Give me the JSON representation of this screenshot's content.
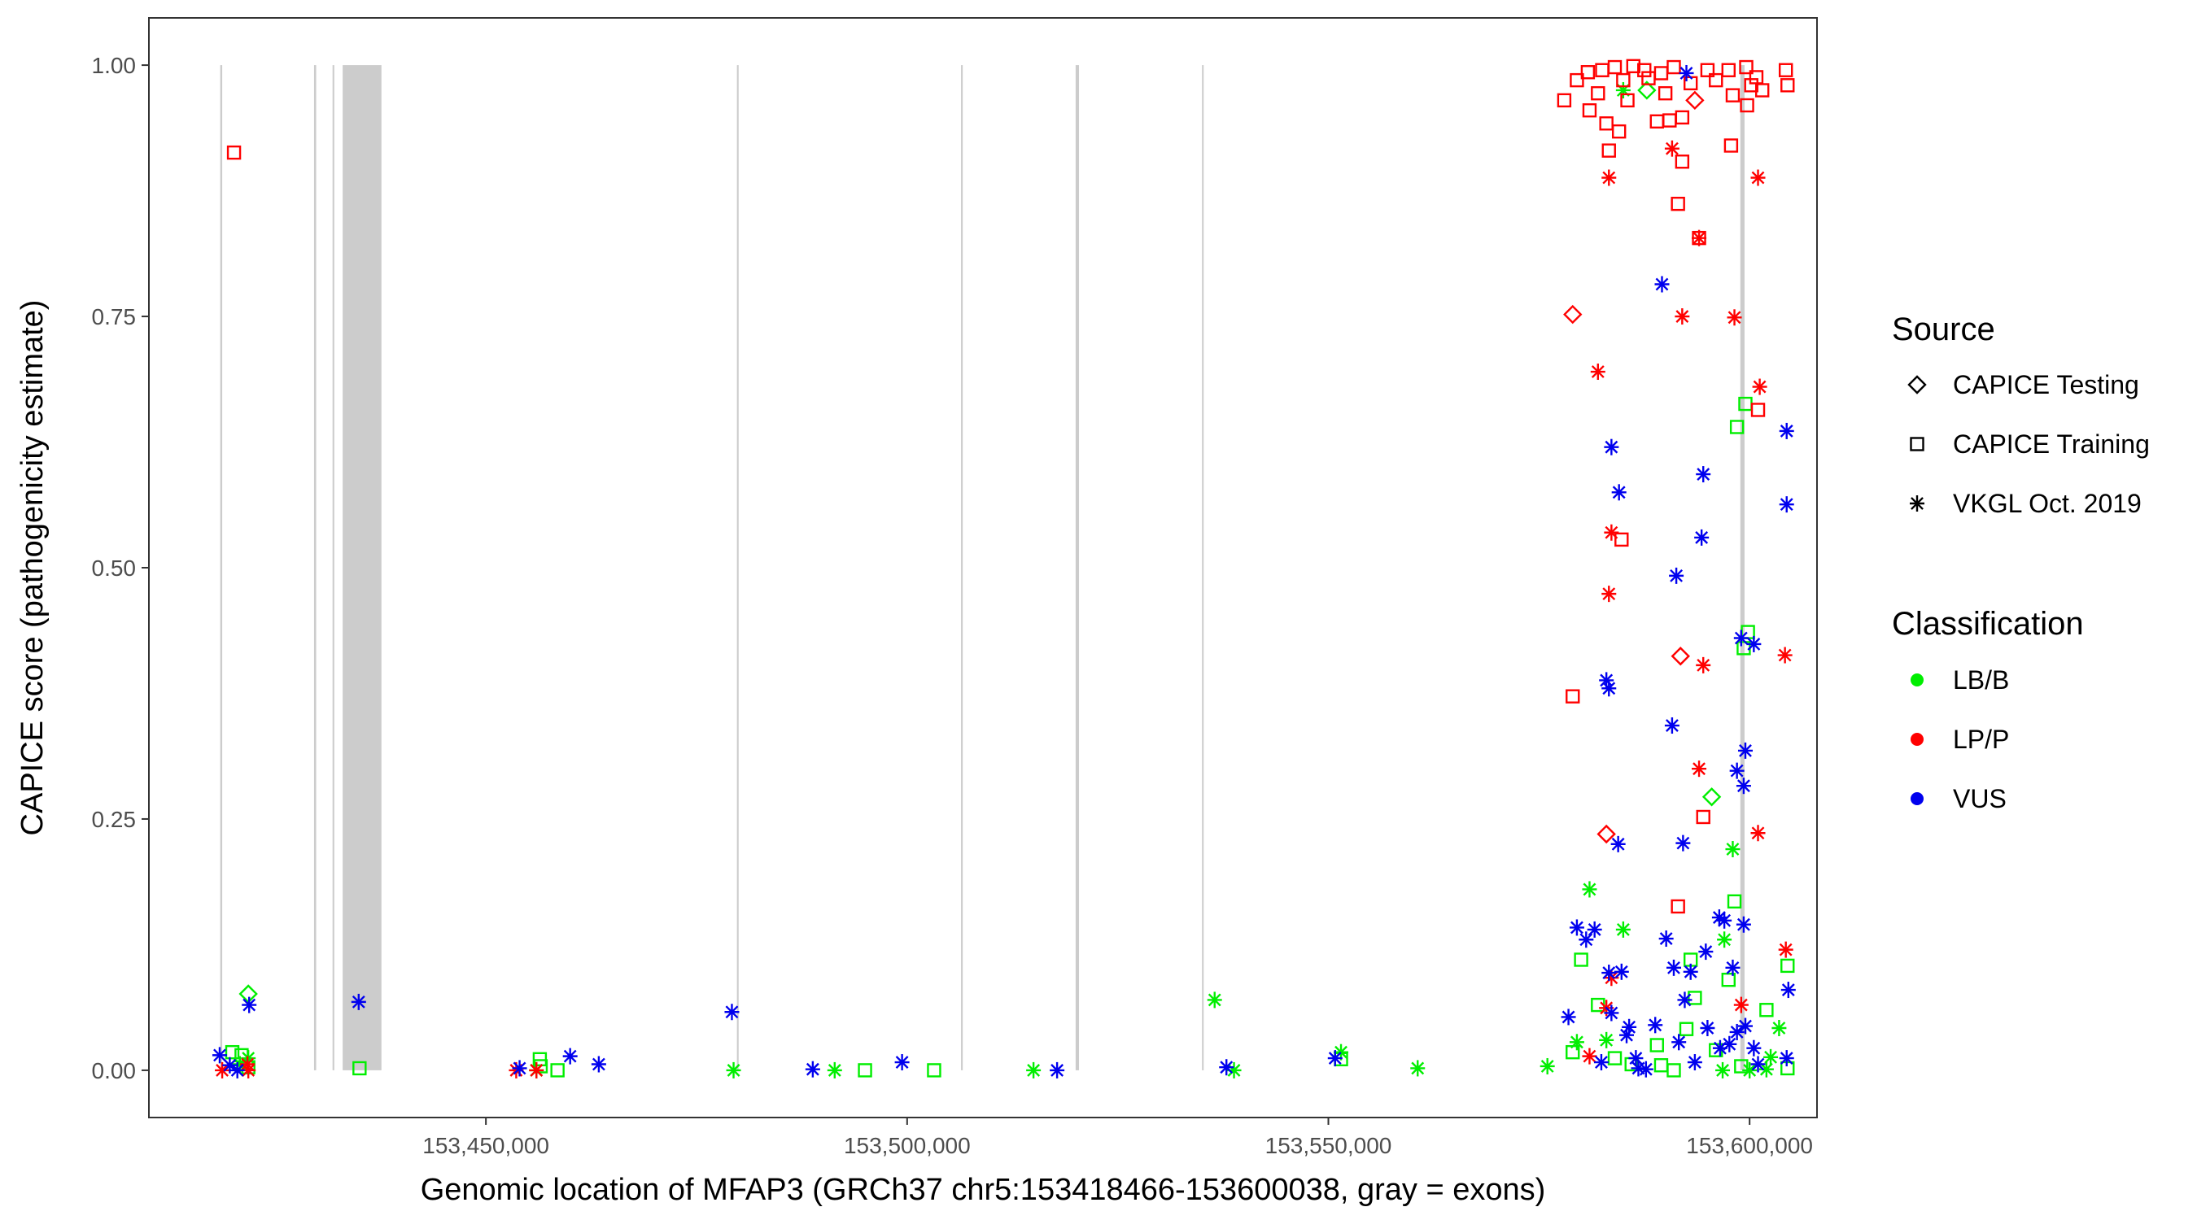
{
  "chart_data": {
    "type": "scatter",
    "title": "",
    "xlabel": "Genomic location of MFAP3 (GRCh37 chr5:153418466-153600038, gray = exons)",
    "ylabel": "CAPICE score (pathogenicity estimate)",
    "xlim": [
      153410000,
      153608000
    ],
    "ylim": [
      -0.047,
      1.047
    ],
    "grid": false,
    "x_ticks": [
      153450000,
      153500000,
      153550000,
      153600000
    ],
    "x_tick_labels": [
      "153,450,000",
      "153,500,000",
      "153,550,000",
      "153,600,000"
    ],
    "y_ticks": [
      0.0,
      0.25,
      0.5,
      0.75,
      1.0
    ],
    "y_tick_labels": [
      "0.00",
      "0.25",
      "0.50",
      "0.75",
      "1.00"
    ],
    "exons": [
      [
        153418466,
        153418700
      ],
      [
        153429600,
        153429850
      ],
      [
        153431800,
        153432000
      ],
      [
        153433000,
        153437600
      ],
      [
        153479800,
        153480000
      ],
      [
        153506400,
        153506600
      ],
      [
        153520000,
        153520400
      ],
      [
        153535000,
        153535200
      ],
      [
        153598900,
        153599400
      ]
    ],
    "legend": {
      "position": "right",
      "source_title": "Source",
      "source_items": [
        {
          "label": "CAPICE Testing",
          "shape": "diamond"
        },
        {
          "label": "CAPICE Training",
          "shape": "square"
        },
        {
          "label": "VKGL Oct. 2019",
          "shape": "asterisk"
        }
      ],
      "class_title": "Classification",
      "class_items": [
        {
          "label": "LB/B",
          "color": "#00ee00"
        },
        {
          "label": "LP/P",
          "color": "#ff0000"
        },
        {
          "label": "VUS",
          "color": "#0000ee"
        }
      ]
    },
    "series": [
      {
        "name": "LB/B",
        "color": "#00ee00",
        "points": [
          [
            153421800,
            0.076,
            "diamond"
          ],
          [
            153419900,
            0.018,
            "square"
          ],
          [
            153421000,
            0.015,
            "square"
          ],
          [
            153421800,
            0.012,
            "asterisk"
          ],
          [
            153420800,
            0.006,
            "asterisk"
          ],
          [
            153421800,
            0.003,
            "square"
          ],
          [
            153435000,
            0.002,
            "square"
          ],
          [
            153456400,
            0.011,
            "square"
          ],
          [
            153456500,
            0.004,
            "square"
          ],
          [
            153458500,
            0.0,
            "square"
          ],
          [
            153456000,
            0.0,
            "asterisk"
          ],
          [
            153479400,
            0.0,
            "asterisk"
          ],
          [
            153491400,
            0.0,
            "asterisk"
          ],
          [
            153495000,
            0.0,
            "square"
          ],
          [
            153503200,
            0.0,
            "square"
          ],
          [
            153515000,
            0.0,
            "asterisk"
          ],
          [
            153536500,
            0.07,
            "asterisk"
          ],
          [
            153538800,
            0.0,
            "asterisk"
          ],
          [
            153551500,
            0.018,
            "asterisk"
          ],
          [
            153551500,
            0.011,
            "square"
          ],
          [
            153560600,
            0.002,
            "asterisk"
          ],
          [
            153576000,
            0.004,
            "asterisk"
          ],
          [
            153579000,
            0.018,
            "square"
          ],
          [
            153579500,
            0.028,
            "asterisk"
          ],
          [
            153580000,
            0.11,
            "square"
          ],
          [
            153581000,
            0.18,
            "asterisk"
          ],
          [
            153582000,
            0.065,
            "square"
          ],
          [
            153583000,
            0.03,
            "asterisk"
          ],
          [
            153585000,
            0.14,
            "asterisk"
          ],
          [
            153584000,
            0.012,
            "square"
          ],
          [
            153586000,
            0.006,
            "square"
          ],
          [
            153587800,
            0.975,
            "diamond"
          ],
          [
            153585000,
            0.975,
            "asterisk"
          ],
          [
            153589000,
            0.025,
            "square"
          ],
          [
            153589500,
            0.005,
            "square"
          ],
          [
            153591000,
            0.0,
            "square"
          ],
          [
            153592500,
            0.041,
            "square"
          ],
          [
            153593000,
            0.11,
            "square"
          ],
          [
            153593500,
            0.072,
            "square"
          ],
          [
            153595500,
            0.272,
            "diamond"
          ],
          [
            153596000,
            0.02,
            "square"
          ],
          [
            153597000,
            0.13,
            "asterisk"
          ],
          [
            153597500,
            0.09,
            "square"
          ],
          [
            153598000,
            0.22,
            "asterisk"
          ],
          [
            153598200,
            0.168,
            "square"
          ],
          [
            153598500,
            0.64,
            "square"
          ],
          [
            153599500,
            0.663,
            "square"
          ],
          [
            153599800,
            0.436,
            "square"
          ],
          [
            153599300,
            0.42,
            "square"
          ],
          [
            153602000,
            0.06,
            "square"
          ],
          [
            153602500,
            0.013,
            "asterisk"
          ],
          [
            153599000,
            0.004,
            "square"
          ],
          [
            153600000,
            0.0,
            "asterisk"
          ],
          [
            153603500,
            0.042,
            "asterisk"
          ],
          [
            153604500,
            0.104,
            "square"
          ],
          [
            153604500,
            0.002,
            "square"
          ],
          [
            153602000,
            0.001,
            "asterisk"
          ],
          [
            153596800,
            0.0,
            "asterisk"
          ]
        ]
      },
      {
        "name": "LP/P",
        "color": "#ff0000",
        "points": [
          [
            153420100,
            0.913,
            "square"
          ],
          [
            153418700,
            0.0,
            "asterisk"
          ],
          [
            153421700,
            0.006,
            "asterisk"
          ],
          [
            153421800,
            0.0,
            "asterisk"
          ],
          [
            153453600,
            0.0,
            "asterisk"
          ],
          [
            153456000,
            0.0,
            "asterisk"
          ],
          [
            153579000,
            0.752,
            "diamond"
          ],
          [
            153579000,
            0.372,
            "square"
          ],
          [
            153582000,
            0.695,
            "asterisk"
          ],
          [
            153583300,
            0.888,
            "asterisk"
          ],
          [
            153583600,
            0.535,
            "asterisk"
          ],
          [
            153583300,
            0.474,
            "asterisk"
          ],
          [
            153583000,
            0.235,
            "diamond"
          ],
          [
            153584800,
            0.528,
            "square"
          ],
          [
            153583600,
            0.092,
            "asterisk"
          ],
          [
            153583000,
            0.062,
            "asterisk"
          ],
          [
            153581000,
            0.014,
            "asterisk"
          ],
          [
            153578000,
            0.965,
            "square"
          ],
          [
            153579500,
            0.985,
            "square"
          ],
          [
            153580800,
            0.993,
            "square"
          ],
          [
            153581000,
            0.955,
            "square"
          ],
          [
            153582000,
            0.972,
            "square"
          ],
          [
            153582500,
            0.995,
            "square"
          ],
          [
            153583000,
            0.942,
            "square"
          ],
          [
            153583300,
            0.915,
            "square"
          ],
          [
            153584000,
            0.998,
            "square"
          ],
          [
            153584500,
            0.934,
            "square"
          ],
          [
            153585000,
            0.985,
            "square"
          ],
          [
            153585500,
            0.965,
            "square"
          ],
          [
            153586200,
            0.999,
            "square"
          ],
          [
            153587500,
            0.995,
            "square"
          ],
          [
            153588000,
            0.987,
            "square"
          ],
          [
            153589000,
            0.944,
            "square"
          ],
          [
            153589500,
            0.992,
            "square"
          ],
          [
            153590000,
            0.972,
            "square"
          ],
          [
            153590500,
            0.945,
            "square"
          ],
          [
            153590800,
            0.917,
            "asterisk"
          ],
          [
            153591000,
            0.998,
            "square"
          ],
          [
            153591500,
            0.862,
            "square"
          ],
          [
            153591500,
            0.163,
            "square"
          ],
          [
            153592000,
            0.948,
            "square"
          ],
          [
            153592000,
            0.904,
            "square"
          ],
          [
            153592000,
            0.75,
            "asterisk"
          ],
          [
            153591800,
            0.412,
            "diamond"
          ],
          [
            153593000,
            0.982,
            "square"
          ],
          [
            153593500,
            0.965,
            "diamond"
          ],
          [
            153594000,
            0.828,
            "square"
          ],
          [
            153594000,
            0.828,
            "asterisk"
          ],
          [
            153594000,
            0.3,
            "asterisk"
          ],
          [
            153594500,
            0.252,
            "square"
          ],
          [
            153594500,
            0.403,
            "asterisk"
          ],
          [
            153595000,
            0.995,
            "square"
          ],
          [
            153596000,
            0.985,
            "square"
          ],
          [
            153597500,
            0.995,
            "square"
          ],
          [
            153597800,
            0.92,
            "square"
          ],
          [
            153598000,
            0.97,
            "square"
          ],
          [
            153598200,
            0.749,
            "asterisk"
          ],
          [
            153599000,
            0.065,
            "asterisk"
          ],
          [
            153599600,
            0.998,
            "square"
          ],
          [
            153599700,
            0.96,
            "square"
          ],
          [
            153600200,
            0.98,
            "square"
          ],
          [
            153600800,
            0.988,
            "square"
          ],
          [
            153601000,
            0.888,
            "asterisk"
          ],
          [
            153601200,
            0.68,
            "asterisk"
          ],
          [
            153601000,
            0.657,
            "square"
          ],
          [
            153601000,
            0.236,
            "asterisk"
          ],
          [
            153601500,
            0.975,
            "square"
          ],
          [
            153604300,
            0.995,
            "square"
          ],
          [
            153604500,
            0.98,
            "square"
          ],
          [
            153604200,
            0.413,
            "asterisk"
          ],
          [
            153604300,
            0.12,
            "asterisk"
          ]
        ]
      },
      {
        "name": "VUS",
        "color": "#0000ee",
        "points": [
          [
            153418400,
            0.015,
            "asterisk"
          ],
          [
            153419600,
            0.005,
            "asterisk"
          ],
          [
            153420500,
            0.0,
            "asterisk"
          ],
          [
            153421900,
            0.065,
            "asterisk"
          ],
          [
            153434900,
            0.068,
            "asterisk"
          ],
          [
            153454000,
            0.002,
            "asterisk"
          ],
          [
            153460000,
            0.014,
            "asterisk"
          ],
          [
            153463400,
            0.006,
            "asterisk"
          ],
          [
            153479200,
            0.058,
            "asterisk"
          ],
          [
            153488800,
            0.001,
            "asterisk"
          ],
          [
            153499400,
            0.008,
            "asterisk"
          ],
          [
            153517800,
            0.0,
            "asterisk"
          ],
          [
            153537900,
            0.003,
            "asterisk"
          ],
          [
            153550800,
            0.012,
            "asterisk"
          ],
          [
            153578500,
            0.053,
            "asterisk"
          ],
          [
            153579500,
            0.142,
            "asterisk"
          ],
          [
            153580600,
            0.13,
            "asterisk"
          ],
          [
            153581600,
            0.14,
            "asterisk"
          ],
          [
            153583000,
            0.388,
            "asterisk"
          ],
          [
            153583300,
            0.38,
            "asterisk"
          ],
          [
            153583600,
            0.62,
            "asterisk"
          ],
          [
            153583300,
            0.097,
            "asterisk"
          ],
          [
            153583600,
            0.057,
            "asterisk"
          ],
          [
            153584500,
            0.575,
            "asterisk"
          ],
          [
            153584400,
            0.225,
            "asterisk"
          ],
          [
            153584800,
            0.098,
            "asterisk"
          ],
          [
            153585400,
            0.035,
            "asterisk"
          ],
          [
            153585700,
            0.043,
            "asterisk"
          ],
          [
            153586500,
            0.012,
            "asterisk"
          ],
          [
            153586800,
            0.002,
            "asterisk"
          ],
          [
            153588800,
            0.045,
            "asterisk"
          ],
          [
            153589600,
            0.782,
            "asterisk"
          ],
          [
            153590100,
            0.131,
            "asterisk"
          ],
          [
            153590800,
            0.343,
            "asterisk"
          ],
          [
            153591300,
            0.492,
            "asterisk"
          ],
          [
            153591000,
            0.102,
            "asterisk"
          ],
          [
            153591600,
            0.028,
            "asterisk"
          ],
          [
            153592100,
            0.226,
            "asterisk"
          ],
          [
            153592300,
            0.07,
            "asterisk"
          ],
          [
            153592500,
            0.992,
            "asterisk"
          ],
          [
            153593000,
            0.098,
            "asterisk"
          ],
          [
            153593500,
            0.008,
            "asterisk"
          ],
          [
            153594300,
            0.53,
            "asterisk"
          ],
          [
            153594500,
            0.593,
            "asterisk"
          ],
          [
            153594800,
            0.118,
            "asterisk"
          ],
          [
            153595000,
            0.042,
            "asterisk"
          ],
          [
            153596400,
            0.152,
            "asterisk"
          ],
          [
            153596500,
            0.022,
            "asterisk"
          ],
          [
            153597000,
            0.149,
            "asterisk"
          ],
          [
            153597600,
            0.026,
            "asterisk"
          ],
          [
            153598000,
            0.102,
            "asterisk"
          ],
          [
            153598500,
            0.298,
            "asterisk"
          ],
          [
            153598500,
            0.038,
            "asterisk"
          ],
          [
            153599000,
            0.43,
            "asterisk"
          ],
          [
            153599500,
            0.318,
            "asterisk"
          ],
          [
            153599300,
            0.145,
            "asterisk"
          ],
          [
            153599300,
            0.283,
            "asterisk"
          ],
          [
            153599500,
            0.044,
            "asterisk"
          ],
          [
            153600500,
            0.424,
            "asterisk"
          ],
          [
            153600500,
            0.022,
            "asterisk"
          ],
          [
            153601000,
            0.006,
            "asterisk"
          ],
          [
            153604400,
            0.636,
            "asterisk"
          ],
          [
            153604400,
            0.563,
            "asterisk"
          ],
          [
            153604600,
            0.08,
            "asterisk"
          ],
          [
            153604400,
            0.012,
            "asterisk"
          ],
          [
            153587700,
            0.001,
            "asterisk"
          ],
          [
            153582400,
            0.008,
            "asterisk"
          ]
        ]
      }
    ]
  }
}
